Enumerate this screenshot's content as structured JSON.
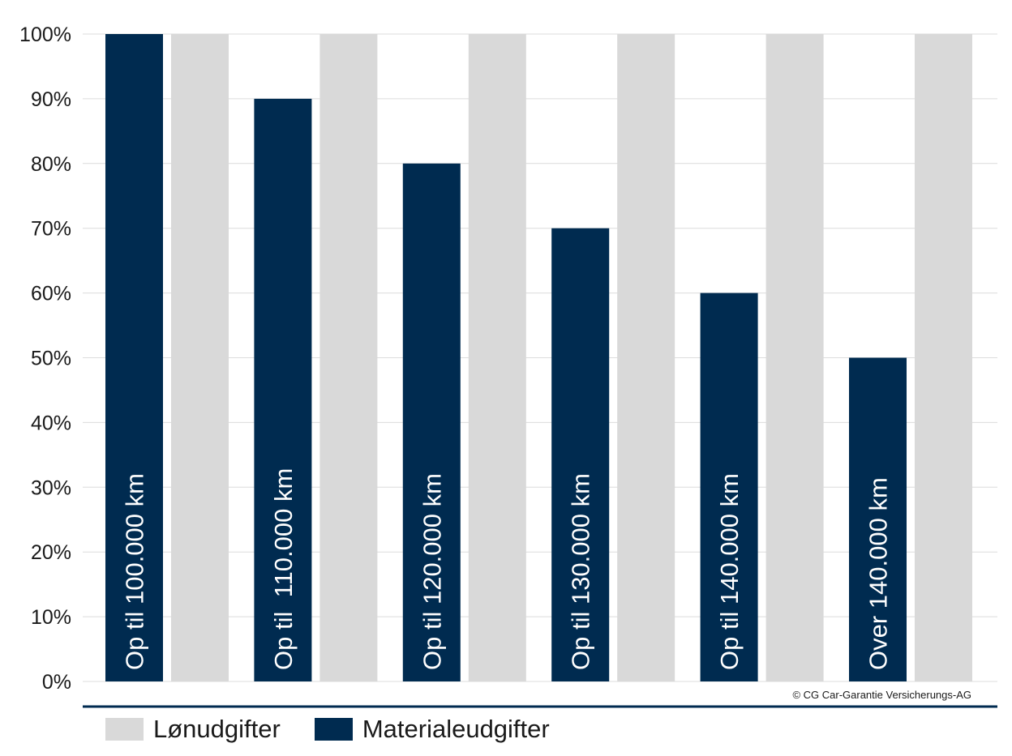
{
  "chart_data": {
    "type": "bar",
    "categories": [
      "Op til 100.000 km",
      "Op til  110.000 km",
      "Op til 120.000 km",
      "Op til 130.000 km",
      "Op til 140.000 km",
      "Over 140.000 km"
    ],
    "series": [
      {
        "name": "Materialeudgifter",
        "values": [
          100,
          90,
          80,
          70,
          60,
          50
        ],
        "color": "#002b50"
      },
      {
        "name": "Lønudgifter",
        "values": [
          100,
          100,
          100,
          100,
          100,
          100
        ],
        "color": "#d9d9d9"
      }
    ],
    "ylim": [
      0,
      100
    ],
    "yticks": [
      "0%",
      "10%",
      "20%",
      "30%",
      "40%",
      "50%",
      "60%",
      "70%",
      "80%",
      "90%",
      "100%"
    ],
    "grid": true,
    "legend_position": "bottom-left",
    "credit": "© CG Car-Garantie Versicherungs-AG"
  },
  "legend": {
    "labour_label": "Lønudgifter",
    "material_label": "Materialeudgifter"
  }
}
